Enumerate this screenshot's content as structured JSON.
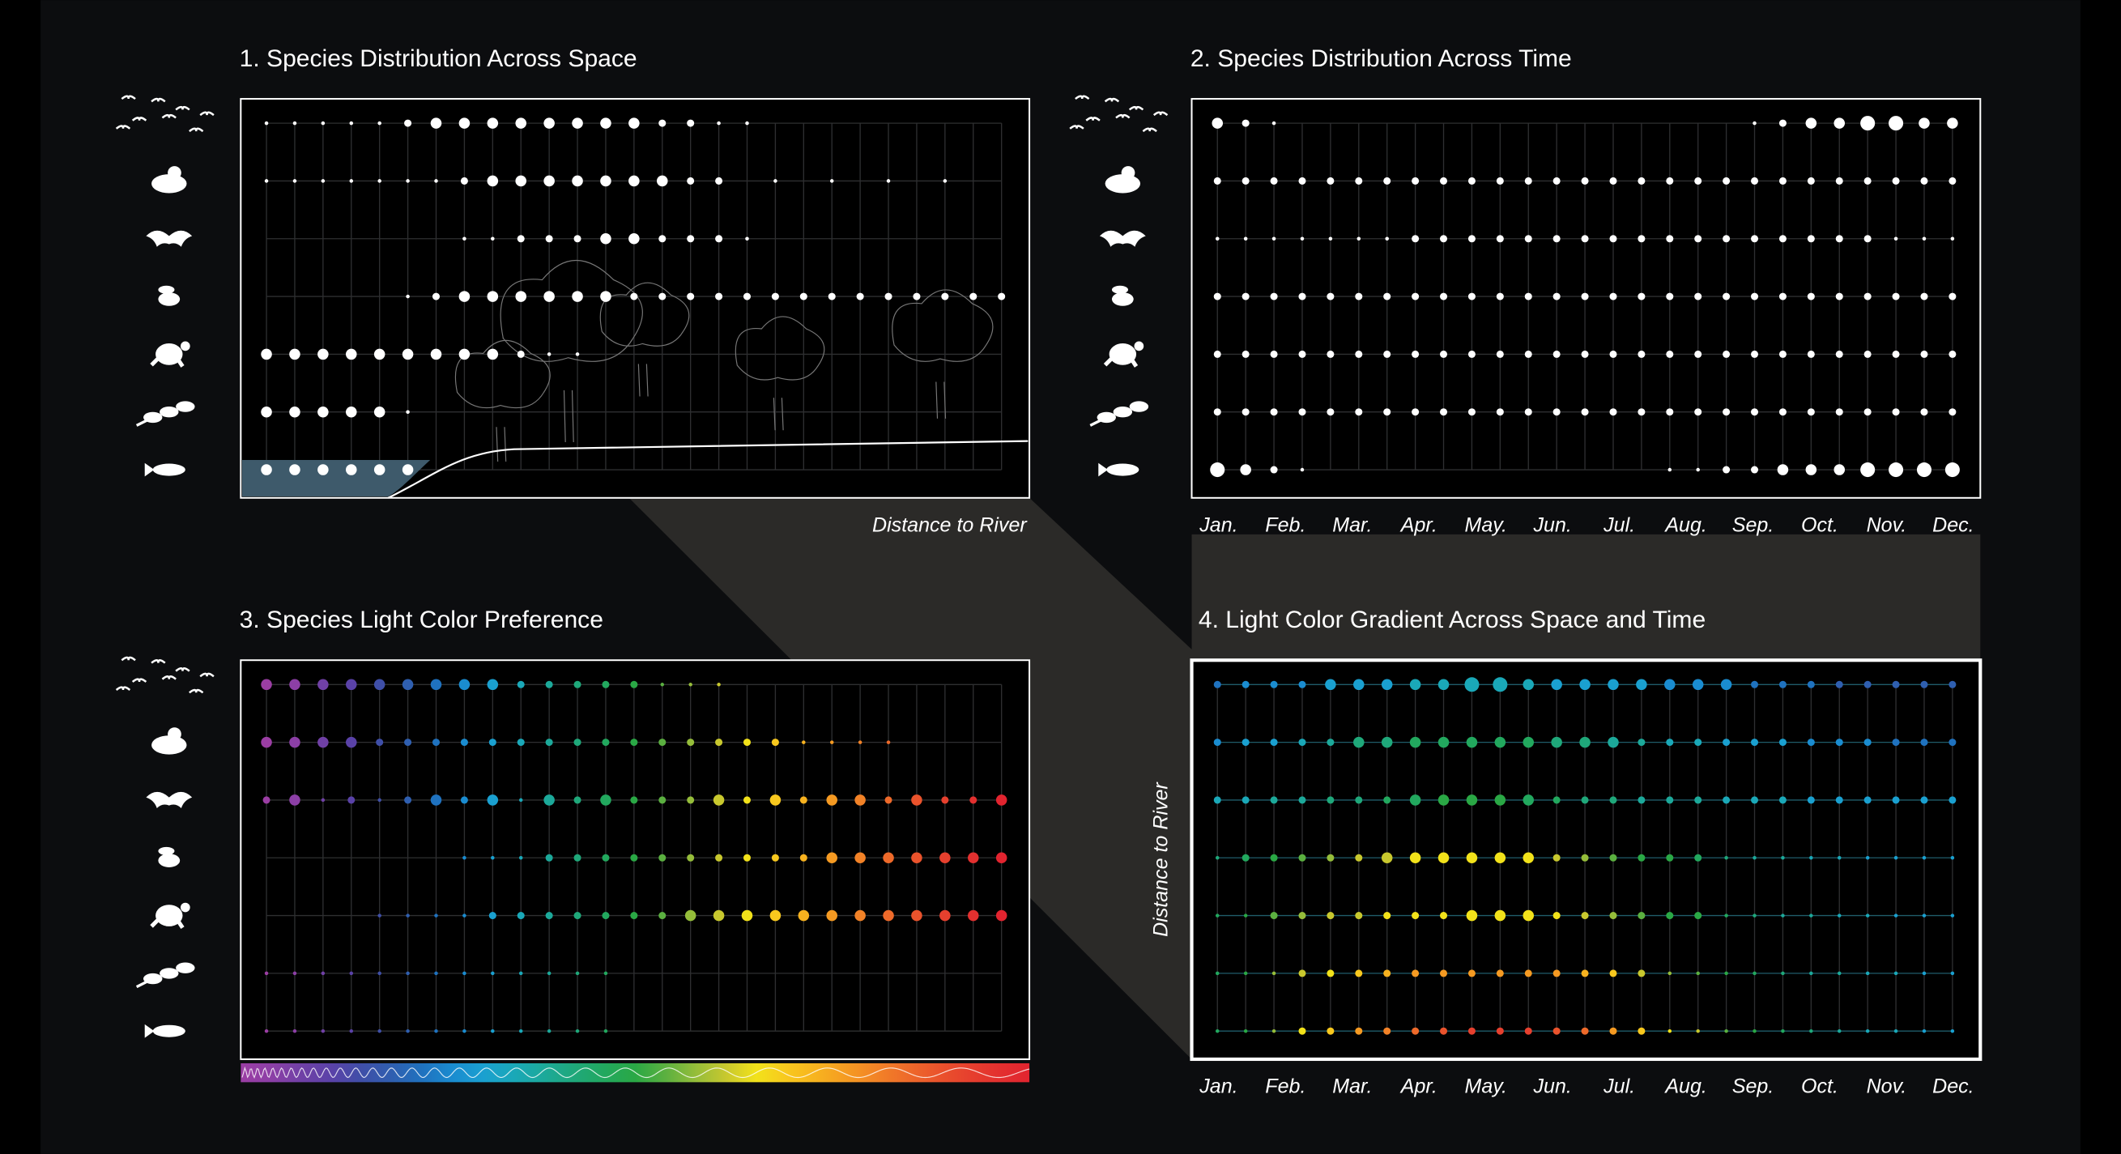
{
  "chart_data": [
    {
      "type": "dot-matrix",
      "title": "1. Species Distribution Across Space",
      "x_axis_label": "Distance to River",
      "color": "#ffffff",
      "sizes": [
        [
          1,
          1,
          1,
          1,
          1,
          2,
          3,
          3,
          3,
          3,
          3,
          3,
          3,
          3,
          2,
          2,
          1,
          1,
          0,
          0,
          0,
          0,
          0,
          0,
          0,
          0,
          0
        ],
        [
          1,
          1,
          1,
          1,
          1,
          1,
          1,
          2,
          3,
          3,
          3,
          3,
          3,
          3,
          3,
          2,
          2,
          0,
          1,
          0,
          1,
          0,
          1,
          0,
          1,
          0,
          0
        ],
        [
          0,
          0,
          0,
          0,
          0,
          0,
          0,
          1,
          1,
          2,
          2,
          2,
          3,
          3,
          2,
          2,
          2,
          1,
          0,
          0,
          0,
          0,
          0,
          0,
          0,
          0,
          0
        ],
        [
          0,
          0,
          0,
          0,
          0,
          1,
          2,
          3,
          3,
          3,
          3,
          3,
          3,
          2,
          2,
          2,
          2,
          2,
          2,
          2,
          2,
          2,
          2,
          2,
          2,
          2,
          2
        ],
        [
          3,
          3,
          3,
          3,
          3,
          3,
          3,
          3,
          3,
          2,
          1,
          1,
          0,
          0,
          0,
          0,
          0,
          0,
          0,
          0,
          0,
          0,
          0,
          0,
          0,
          0,
          0
        ],
        [
          3,
          3,
          3,
          3,
          3,
          1,
          0,
          0,
          0,
          0,
          0,
          0,
          0,
          0,
          0,
          0,
          0,
          0,
          0,
          0,
          0,
          0,
          0,
          0,
          0,
          0,
          0
        ],
        [
          3,
          3,
          3,
          3,
          3,
          3,
          0,
          0,
          0,
          0,
          0,
          0,
          0,
          0,
          0,
          0,
          0,
          0,
          0,
          0,
          0,
          0,
          0,
          0,
          0,
          0,
          0
        ]
      ]
    },
    {
      "type": "dot-matrix",
      "title": "2. Species Distribution Across Time",
      "color": "#ffffff",
      "categories": [
        "Jan.",
        "Feb.",
        "Mar.",
        "Apr.",
        "May.",
        "Jun.",
        "Jul.",
        "Aug.",
        "Sep.",
        "Oct.",
        "Nov.",
        "Dec."
      ],
      "sizes": [
        [
          3,
          2,
          1,
          0,
          0,
          0,
          0,
          0,
          0,
          0,
          0,
          0,
          0,
          0,
          0,
          0,
          0,
          0,
          0,
          1,
          2,
          3,
          3,
          4,
          4,
          3,
          3
        ],
        [
          2,
          2,
          2,
          2,
          2,
          2,
          2,
          2,
          2,
          2,
          2,
          2,
          2,
          2,
          2,
          2,
          2,
          2,
          2,
          2,
          2,
          2,
          2,
          2,
          2,
          2,
          2
        ],
        [
          1,
          1,
          1,
          1,
          1,
          1,
          1,
          2,
          2,
          2,
          2,
          2,
          2,
          2,
          2,
          2,
          2,
          2,
          2,
          2,
          2,
          2,
          2,
          2,
          1,
          1,
          1
        ],
        [
          2,
          2,
          2,
          2,
          2,
          2,
          2,
          2,
          2,
          2,
          2,
          2,
          2,
          2,
          2,
          2,
          2,
          2,
          2,
          2,
          2,
          2,
          2,
          2,
          2,
          2,
          2
        ],
        [
          2,
          2,
          2,
          2,
          2,
          2,
          2,
          2,
          2,
          2,
          2,
          2,
          2,
          2,
          2,
          2,
          2,
          2,
          2,
          2,
          2,
          2,
          2,
          2,
          2,
          2,
          2
        ],
        [
          2,
          2,
          2,
          2,
          2,
          2,
          2,
          2,
          2,
          2,
          2,
          2,
          2,
          2,
          2,
          2,
          2,
          2,
          2,
          2,
          2,
          2,
          2,
          2,
          2,
          2,
          2
        ],
        [
          4,
          3,
          2,
          1,
          0,
          0,
          0,
          0,
          0,
          0,
          0,
          0,
          0,
          0,
          0,
          0,
          1,
          1,
          2,
          2,
          3,
          3,
          3,
          4,
          4,
          4,
          4
        ]
      ]
    },
    {
      "type": "spectrum-matrix",
      "title": "3. Species Light Color Preference",
      "colors": [
        "#9b3ea4",
        "#8c3fa6",
        "#7040a6",
        "#5a42a8",
        "#3f4fa8",
        "#2f5fb0",
        "#1f72bf",
        "#1a8cd0",
        "#1aa0d0",
        "#1aa8b8",
        "#1ca99a",
        "#1fa87a",
        "#22a85e",
        "#2aa845",
        "#5bb040",
        "#95bd3a",
        "#c8c82e",
        "#f2e21a",
        "#f8c81e",
        "#f7b21f",
        "#f59a22",
        "#f28227",
        "#ee6a2a",
        "#ea532c",
        "#e6402e",
        "#e3302f",
        "#e2242f"
      ],
      "sizes": [
        [
          3,
          3,
          3,
          3,
          3,
          3,
          3,
          3,
          3,
          2,
          2,
          2,
          2,
          2,
          1,
          1,
          1,
          0,
          0,
          0,
          0,
          0,
          0,
          0,
          0,
          0,
          0
        ],
        [
          3,
          3,
          3,
          3,
          2,
          2,
          2,
          2,
          2,
          2,
          2,
          2,
          2,
          2,
          2,
          2,
          2,
          2,
          2,
          1,
          1,
          1,
          1,
          0,
          0,
          0,
          0
        ],
        [
          2,
          3,
          1,
          2,
          1,
          2,
          3,
          2,
          3,
          1,
          3,
          2,
          3,
          2,
          2,
          2,
          3,
          2,
          3,
          2,
          3,
          3,
          2,
          3,
          2,
          2,
          3
        ],
        [
          0,
          0,
          0,
          0,
          0,
          0,
          0,
          1,
          1,
          1,
          2,
          2,
          2,
          2,
          2,
          2,
          2,
          2,
          2,
          2,
          3,
          3,
          3,
          3,
          3,
          3,
          3
        ],
        [
          0,
          0,
          0,
          0,
          1,
          1,
          1,
          1,
          2,
          2,
          2,
          2,
          2,
          2,
          2,
          3,
          3,
          3,
          3,
          3,
          3,
          3,
          3,
          3,
          3,
          3,
          3
        ],
        [
          1,
          1,
          1,
          1,
          1,
          1,
          1,
          1,
          1,
          1,
          1,
          1,
          1,
          0,
          0,
          0,
          0,
          0,
          0,
          0,
          0,
          0,
          0,
          0,
          0,
          0,
          0
        ],
        [
          1,
          1,
          1,
          1,
          1,
          1,
          1,
          1,
          1,
          1,
          1,
          1,
          1,
          0,
          0,
          0,
          0,
          0,
          0,
          0,
          0,
          0,
          0,
          0,
          0,
          0,
          0
        ]
      ]
    },
    {
      "type": "gradient-matrix",
      "title": "4. Light Color Gradient Across Space and Time",
      "y_axis_label": "Distance to River",
      "categories": [
        "Jan.",
        "Feb.",
        "Mar.",
        "Apr.",
        "May.",
        "Jun.",
        "Jul.",
        "Aug.",
        "Sep.",
        "Oct.",
        "Nov.",
        "Dec."
      ],
      "colors": [
        "#9b3ea4",
        "#8c3fa6",
        "#7040a6",
        "#5a42a8",
        "#3f4fa8",
        "#2f5fb0",
        "#1f72bf",
        "#1a8cd0",
        "#1aa0d0",
        "#1aa8b8",
        "#1ca99a",
        "#1fa87a",
        "#22a85e",
        "#2aa845",
        "#5bb040",
        "#95bd3a",
        "#c8c82e",
        "#f2e21a",
        "#f8c81e",
        "#f7b21f",
        "#f59a22",
        "#f28227",
        "#ee6a2a",
        "#ea532c",
        "#e6402e",
        "#e3302f",
        "#e2242f"
      ],
      "hues": [
        [
          6,
          7,
          7,
          7,
          8,
          8,
          8,
          9,
          9,
          9,
          9,
          9,
          8,
          8,
          8,
          8,
          7,
          7,
          7,
          6,
          6,
          6,
          5,
          5,
          5,
          5,
          5
        ],
        [
          7,
          8,
          8,
          9,
          10,
          11,
          11,
          12,
          12,
          12,
          12,
          12,
          11,
          11,
          10,
          10,
          9,
          9,
          8,
          8,
          8,
          7,
          7,
          7,
          6,
          6,
          6
        ],
        [
          9,
          9,
          10,
          10,
          11,
          11,
          12,
          12,
          13,
          13,
          13,
          12,
          12,
          11,
          11,
          10,
          10,
          10,
          9,
          9,
          9,
          8,
          8,
          8,
          8,
          8,
          8
        ],
        [
          11,
          12,
          13,
          14,
          15,
          16,
          16,
          17,
          17,
          17,
          17,
          17,
          16,
          15,
          14,
          13,
          13,
          12,
          11,
          10,
          10,
          9,
          9,
          8,
          8,
          8,
          8
        ],
        [
          12,
          13,
          14,
          15,
          16,
          16,
          17,
          17,
          17,
          17,
          17,
          17,
          17,
          16,
          15,
          14,
          13,
          13,
          12,
          11,
          10,
          10,
          9,
          9,
          8,
          8,
          8
        ],
        [
          12,
          13,
          15,
          16,
          17,
          18,
          19,
          20,
          20,
          20,
          20,
          20,
          20,
          19,
          18,
          16,
          15,
          14,
          13,
          12,
          11,
          10,
          10,
          9,
          9,
          8,
          8
        ],
        [
          12,
          13,
          15,
          17,
          18,
          20,
          21,
          22,
          23,
          24,
          24,
          24,
          23,
          22,
          20,
          18,
          17,
          16,
          14,
          13,
          12,
          11,
          10,
          9,
          9,
          8,
          8
        ]
      ],
      "sizes": [
        [
          2,
          2,
          2,
          2,
          3,
          3,
          3,
          3,
          3,
          4,
          4,
          3,
          3,
          3,
          3,
          3,
          3,
          3,
          3,
          2,
          2,
          2,
          2,
          2,
          2,
          2,
          2
        ],
        [
          2,
          2,
          2,
          2,
          2,
          3,
          3,
          3,
          3,
          3,
          3,
          3,
          3,
          3,
          3,
          2,
          2,
          2,
          2,
          2,
          2,
          2,
          2,
          2,
          2,
          2,
          2
        ],
        [
          2,
          2,
          2,
          2,
          2,
          2,
          2,
          3,
          3,
          3,
          3,
          3,
          2,
          2,
          2,
          2,
          2,
          2,
          2,
          2,
          2,
          2,
          2,
          2,
          2,
          2,
          2
        ],
        [
          1,
          2,
          2,
          2,
          2,
          2,
          3,
          3,
          3,
          3,
          3,
          3,
          2,
          2,
          2,
          2,
          2,
          2,
          1,
          1,
          1,
          1,
          1,
          1,
          1,
          1,
          1
        ],
        [
          1,
          1,
          2,
          2,
          2,
          2,
          2,
          2,
          2,
          3,
          3,
          3,
          2,
          2,
          2,
          2,
          2,
          2,
          1,
          1,
          1,
          1,
          1,
          1,
          1,
          1,
          1
        ],
        [
          1,
          1,
          1,
          2,
          2,
          2,
          2,
          2,
          2,
          2,
          2,
          2,
          2,
          2,
          2,
          2,
          1,
          1,
          1,
          1,
          1,
          1,
          1,
          1,
          1,
          1,
          1
        ],
        [
          1,
          1,
          1,
          2,
          2,
          2,
          2,
          2,
          2,
          2,
          2,
          2,
          2,
          2,
          2,
          2,
          1,
          1,
          1,
          1,
          1,
          1,
          1,
          1,
          1,
          1,
          1
        ]
      ]
    }
  ]
}
